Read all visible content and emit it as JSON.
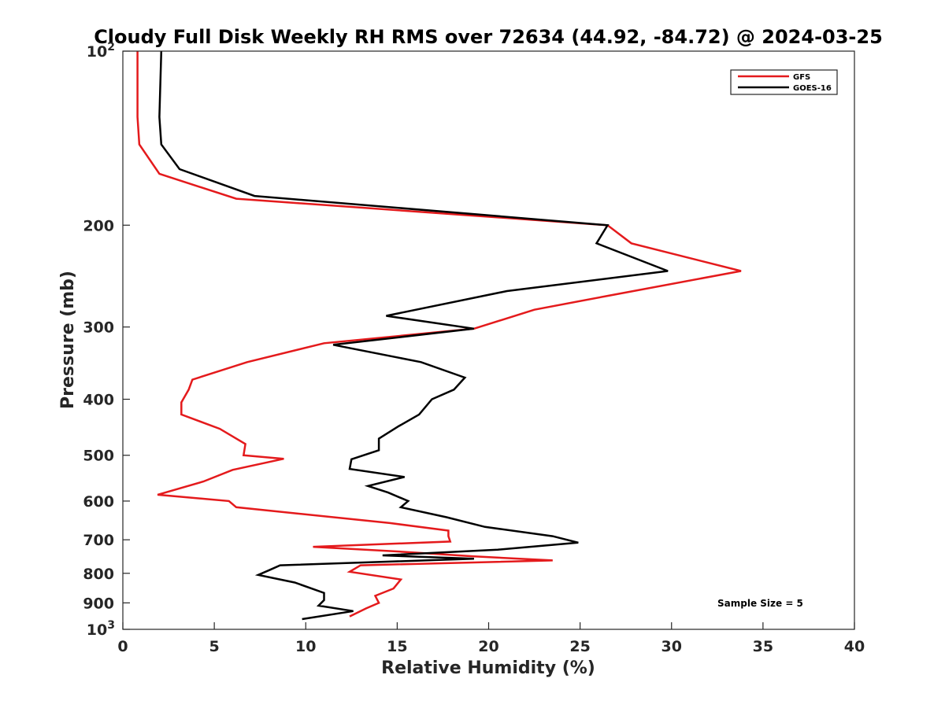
{
  "chart_data": {
    "type": "line",
    "title": "Cloudy Full Disk Weekly RH RMS over 72634 (44.92, -84.72) @ 2024-03-25",
    "xlabel": "Relative Humidity (%)",
    "ylabel": "Pressure (mb)",
    "xlim": [
      0,
      40
    ],
    "ylim": [
      100,
      1000
    ],
    "y_scale": "log",
    "y_reversed": true,
    "x_ticks": [
      "0",
      "5",
      "10",
      "15",
      "20",
      "25",
      "30",
      "35",
      "40"
    ],
    "y_ticks": [
      {
        "value": 100,
        "label": "10",
        "sup": "2"
      },
      {
        "value": 200,
        "label": "200",
        "sup": ""
      },
      {
        "value": 300,
        "label": "300",
        "sup": ""
      },
      {
        "value": 400,
        "label": "400",
        "sup": ""
      },
      {
        "value": 500,
        "label": "500",
        "sup": ""
      },
      {
        "value": 600,
        "label": "600",
        "sup": ""
      },
      {
        "value": 700,
        "label": "700",
        "sup": ""
      },
      {
        "value": 800,
        "label": "800",
        "sup": ""
      },
      {
        "value": 900,
        "label": "900",
        "sup": ""
      },
      {
        "value": 1000,
        "label": "10",
        "sup": "3"
      }
    ],
    "grid": false,
    "legend_position": "top-right",
    "annotation": "Sample Size = 5",
    "series": [
      {
        "name": "GFS",
        "color": "#e41a1c",
        "x": [
          0.8,
          0.8,
          0.8,
          0.9,
          2.0,
          6.2,
          26.5,
          27.8,
          33.8,
          26.5,
          22.5,
          19.2,
          11.0,
          6.8,
          3.8,
          3.6,
          3.2,
          3.2,
          5.3,
          6.7,
          6.6,
          8.8,
          6.0,
          4.4,
          1.9,
          5.8,
          6.2,
          14.6,
          17.8,
          17.8,
          17.9,
          10.4,
          15.5,
          19.2,
          23.5,
          13.0,
          12.4,
          15.2,
          14.8,
          13.8,
          14.0,
          13.3,
          12.4
        ],
        "y": [
          100,
          115,
          130,
          145,
          163,
          180,
          200,
          215,
          240,
          265,
          280,
          302,
          320,
          345,
          370,
          385,
          405,
          425,
          450,
          478,
          500,
          507,
          530,
          555,
          585,
          600,
          615,
          655,
          675,
          690,
          705,
          720,
          735,
          748,
          760,
          775,
          795,
          820,
          850,
          875,
          900,
          920,
          950
        ]
      },
      {
        "name": "GOES-16",
        "color": "#000000",
        "x": [
          2.1,
          2.0,
          2.1,
          3.1,
          7.2,
          26.5,
          25.9,
          29.8,
          21.0,
          14.4,
          19.2,
          11.5,
          16.3,
          18.7,
          18.1,
          16.9,
          16.2,
          15.1,
          14.0,
          14.0,
          12.5,
          12.4,
          15.4,
          13.4,
          14.5,
          15.6,
          15.2,
          17.7,
          19.8,
          23.5,
          24.9,
          20.5,
          14.2,
          19.2,
          13.8,
          8.6,
          8.0,
          7.4,
          9.4,
          11.0,
          11.0,
          10.7,
          12.6,
          9.8
        ],
        "y": [
          100,
          130,
          145,
          160,
          178,
          200,
          215,
          240,
          260,
          287,
          302,
          322,
          345,
          367,
          385,
          400,
          425,
          445,
          468,
          490,
          508,
          528,
          545,
          565,
          580,
          600,
          615,
          640,
          665,
          690,
          708,
          728,
          745,
          755,
          765,
          775,
          790,
          805,
          830,
          865,
          890,
          910,
          930,
          960
        ]
      }
    ]
  }
}
